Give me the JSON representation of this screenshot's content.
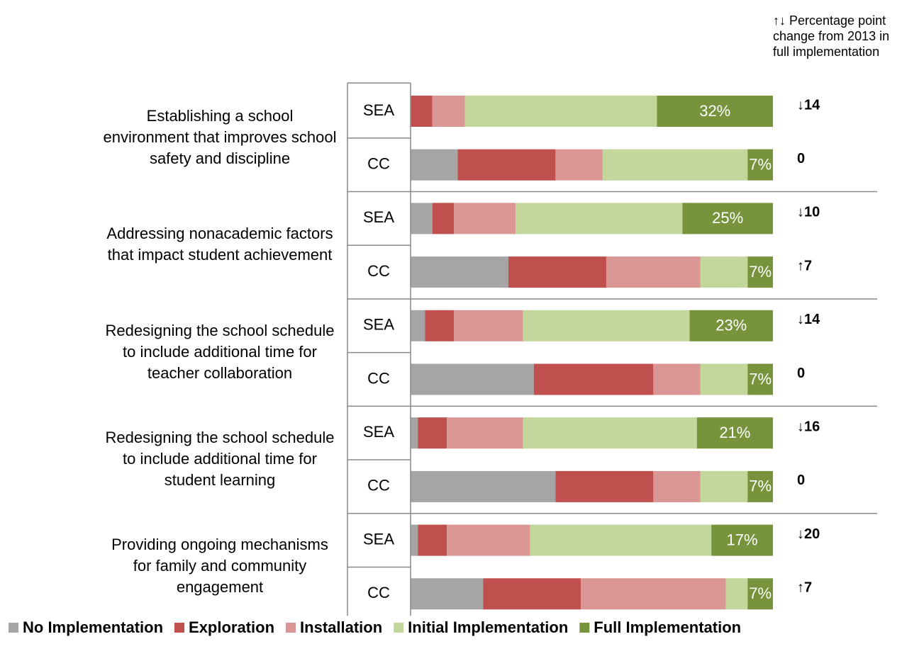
{
  "chart_data": {
    "type": "bar",
    "orientation": "horizontal",
    "stacked": true,
    "note": "↑↓ Percentage point change from 2013 in full implementation",
    "groups": [
      "Establishing a school environment that improves school safety and discipline",
      "Addressing nonacademic factors that impact student achievement",
      "Redesigning the school schedule to include additional time for teacher collaboration",
      "Redesigning the school schedule to include additional time for student learning",
      "Providing ongoing mechanisms for family and community engagement"
    ],
    "categories": [
      "SEA",
      "CC",
      "SEA",
      "CC",
      "SEA",
      "CC",
      "SEA",
      "CC",
      "SEA",
      "CC"
    ],
    "xlim": [
      0,
      100
    ],
    "series": [
      {
        "name": "No Implementation",
        "color": "#a5a5a5",
        "values": [
          0,
          13,
          6,
          27,
          4,
          34,
          2,
          40,
          2,
          20
        ]
      },
      {
        "name": "Exploration",
        "color": "#c0504d",
        "values": [
          6,
          27,
          6,
          27,
          8,
          33,
          8,
          27,
          8,
          27
        ]
      },
      {
        "name": "Installation",
        "color": "#d99694",
        "values": [
          9,
          13,
          17,
          26,
          19,
          13,
          21,
          13,
          23,
          40
        ]
      },
      {
        "name": "Initial Implementation",
        "color": "#c3d69b",
        "values": [
          53,
          40,
          46,
          13,
          46,
          13,
          48,
          13,
          50,
          6
        ]
      },
      {
        "name": "Full Implementation",
        "color": "#77933c",
        "values": [
          32,
          7,
          25,
          7,
          23,
          7,
          21,
          7,
          17,
          7
        ],
        "value_labels": [
          "32%",
          "7%",
          "25%",
          "7%",
          "23%",
          "7%",
          "21%",
          "7%",
          "17%",
          "7%"
        ]
      }
    ],
    "changes": [
      "↓14",
      "0",
      "↓10",
      "↑7",
      "↓14",
      "0",
      "↓16",
      "0",
      "↓20",
      "↑7"
    ],
    "legend": "bottom"
  }
}
